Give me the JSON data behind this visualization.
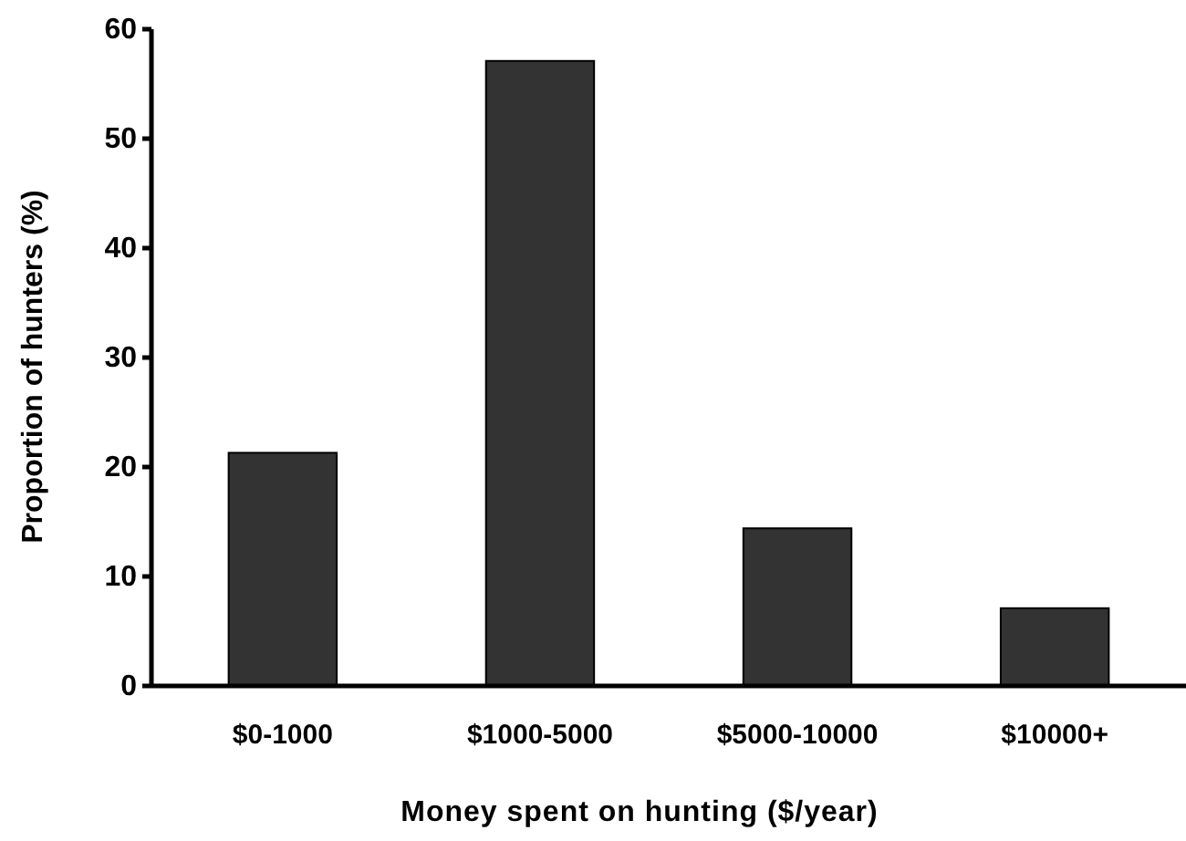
{
  "chart_data": {
    "type": "bar",
    "xlabel": "Money spent on hunting ($/year)",
    "ylabel": "Proportion of hunters (%)",
    "categories": [
      "$0-1000",
      "$1000-5000",
      "$5000-10000",
      "$10000+"
    ],
    "values": [
      21.3,
      57.1,
      14.4,
      7.1
    ],
    "color": "#333333",
    "ylim": [
      0,
      60
    ],
    "yticks": [
      0,
      10,
      20,
      30,
      40,
      50,
      60
    ],
    "grid": false
  }
}
